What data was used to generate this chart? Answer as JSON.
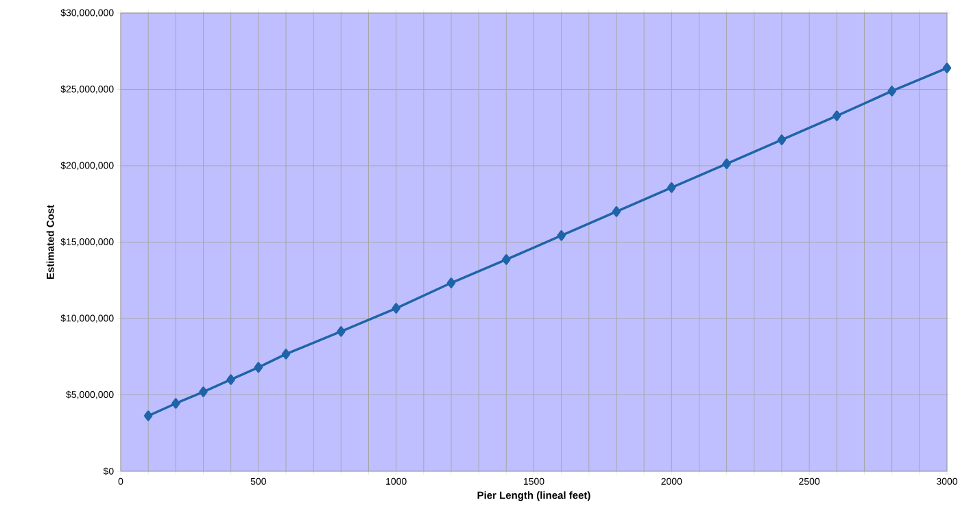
{
  "chart_data": {
    "type": "line",
    "xlabel": "Pier Length (lineal feet)",
    "ylabel": "Estimated Cost",
    "x": [
      100,
      200,
      300,
      400,
      500,
      600,
      800,
      1000,
      1200,
      1400,
      1600,
      1800,
      2000,
      2200,
      2400,
      2600,
      2800,
      3000
    ],
    "series": [
      {
        "color": "#1f64a8",
        "values": [
          3630000,
          4440000,
          5200000,
          6000000,
          6800000,
          7670000,
          9150000,
          10670000,
          12330000,
          13860000,
          15430000,
          17000000,
          18570000,
          20130000,
          21700000,
          23270000,
          24890000,
          26400000
        ]
      }
    ],
    "xlim": [
      0,
      3000
    ],
    "xticks": [
      0,
      {
        "value": 100,
        "label": null
      },
      {
        "value": 200,
        "label": null
      },
      {
        "value": 300,
        "label": null
      },
      {
        "value": 400,
        "label": null
      },
      500,
      {
        "value": 600,
        "label": null
      },
      {
        "value": 700,
        "label": null
      },
      {
        "value": 800,
        "label": null
      },
      {
        "value": 900,
        "label": null
      },
      1000,
      {
        "value": 1100,
        "label": null
      },
      {
        "value": 1200,
        "label": null
      },
      {
        "value": 1300,
        "label": null
      },
      {
        "value": 1400,
        "label": null
      },
      1500,
      {
        "value": 1600,
        "label": null
      },
      {
        "value": 1700,
        "label": null
      },
      {
        "value": 1800,
        "label": null
      },
      {
        "value": 1900,
        "label": null
      },
      2000,
      {
        "value": 2100,
        "label": null
      },
      {
        "value": 2200,
        "label": null
      },
      {
        "value": 2300,
        "label": null
      },
      {
        "value": 2400,
        "label": null
      },
      2500,
      {
        "value": 2600,
        "label": null
      },
      {
        "value": 2700,
        "label": null
      },
      {
        "value": 2800,
        "label": null
      },
      {
        "value": 2900,
        "label": null
      },
      3000
    ],
    "ylim": [
      0,
      30000000
    ],
    "yticks": [
      {
        "value": 0,
        "label": "$0"
      },
      {
        "value": 5000000,
        "label": "$5,000,000"
      },
      {
        "value": 10000000,
        "label": "$10,000,000"
      },
      {
        "value": 15000000,
        "label": "$15,000,000"
      },
      {
        "value": 20000000,
        "label": "$20,000,000"
      },
      {
        "value": 25000000,
        "label": "$25,000,000"
      },
      {
        "value": 30000000,
        "label": "$30,000,000"
      }
    ],
    "grid": true,
    "marker": "diamond",
    "line_style": "solid"
  }
}
